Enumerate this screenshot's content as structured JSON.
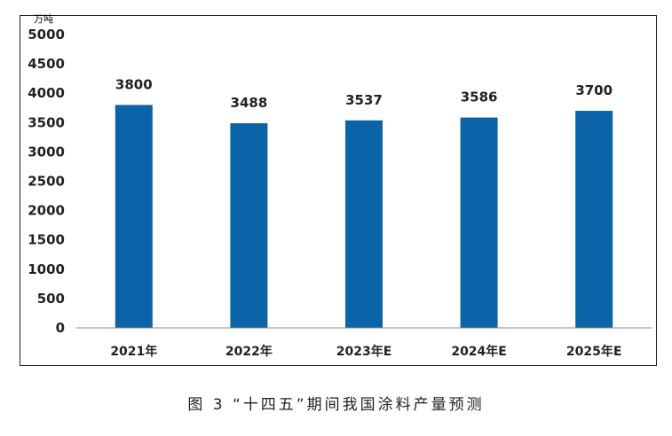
{
  "chart_data": {
    "type": "bar",
    "unit": "万吨",
    "categories": [
      "2021年",
      "2022年",
      "2023年E",
      "2024年E",
      "2025年E"
    ],
    "values": [
      3800,
      3488,
      3537,
      3586,
      3700
    ],
    "value_labels": [
      "3800",
      "3488",
      "3537",
      "3586",
      "3700"
    ],
    "ylim": [
      0,
      5000
    ],
    "yticks": [
      0,
      500,
      1000,
      1500,
      2000,
      2500,
      3000,
      3500,
      4000,
      4500,
      5000
    ],
    "grid": false,
    "legend": "none",
    "bar_color": "#0b64a8"
  },
  "caption": "图 3 “十四五”期间我国涂料产量预测"
}
